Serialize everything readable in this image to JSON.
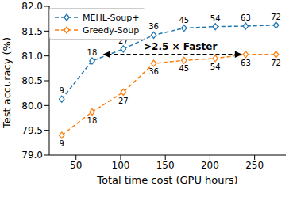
{
  "chart_data": {
    "type": "line",
    "x_label": "Total time cost (GPU hours)",
    "y_label": "Test accuracy (%)",
    "xlim": [
      20,
      285
    ],
    "xticks": [
      50,
      100,
      150,
      200,
      250
    ],
    "ylim": [
      79,
      82
    ],
    "yticks": [
      {
        "value": 79,
        "label": "79.0"
      },
      {
        "value": 79.5,
        "label": "79.5"
      },
      {
        "value": 80,
        "label": "80.0"
      },
      {
        "value": 80.5,
        "label": "80.5"
      },
      {
        "value": 81,
        "label": "81.0"
      },
      {
        "value": 81.5,
        "label": "81.5"
      },
      {
        "value": 82,
        "label": "82.0"
      }
    ],
    "grid": false,
    "legend": "upper left",
    "series": [
      {
        "name": "MEHL-Soup+",
        "color": "#1f77b4",
        "marker": "diamond",
        "line_style": "dashed",
        "x": [
          34,
          68,
          103,
          137,
          171,
          206,
          240,
          274
        ],
        "values": [
          80.13,
          80.9,
          81.14,
          81.42,
          81.56,
          81.59,
          81.6,
          81.62
        ],
        "point_labels": [
          9,
          18,
          27,
          36,
          45,
          54,
          63,
          72
        ]
      },
      {
        "name": "Greedy-Soup",
        "color": "#ff7f0e",
        "marker": "diamond",
        "line_style": "dashed",
        "x": [
          34,
          68,
          103,
          137,
          171,
          206,
          240,
          274
        ],
        "values": [
          79.4,
          79.87,
          80.27,
          80.85,
          80.91,
          80.95,
          81.03,
          81.03
        ],
        "point_labels": [
          9,
          18,
          27,
          36,
          45,
          54,
          63,
          72
        ]
      }
    ],
    "annotations": [
      {
        "text": ">2.5 × Faster",
        "x_from": 80,
        "x_to": 236,
        "y": 81.03
      }
    ]
  }
}
